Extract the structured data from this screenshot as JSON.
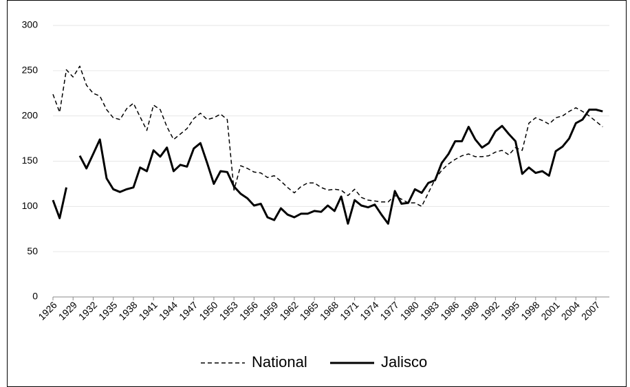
{
  "chart_data": {
    "type": "line",
    "x": [
      1926,
      1927,
      1928,
      1929,
      1930,
      1931,
      1932,
      1933,
      1934,
      1935,
      1936,
      1937,
      1938,
      1939,
      1940,
      1941,
      1942,
      1943,
      1944,
      1945,
      1946,
      1947,
      1948,
      1949,
      1950,
      1951,
      1952,
      1953,
      1954,
      1955,
      1956,
      1957,
      1958,
      1959,
      1960,
      1961,
      1962,
      1963,
      1964,
      1965,
      1966,
      1967,
      1968,
      1969,
      1970,
      1971,
      1972,
      1973,
      1974,
      1975,
      1976,
      1977,
      1978,
      1979,
      1980,
      1981,
      1982,
      1983,
      1984,
      1985,
      1986,
      1987,
      1988,
      1989,
      1990,
      1991,
      1992,
      1993,
      1994,
      1995,
      1996,
      1997,
      1998,
      1999,
      2000,
      2001,
      2002,
      2003,
      2004,
      2005,
      2006,
      2007,
      2008
    ],
    "series": [
      {
        "name": "National",
        "color": "#000000",
        "line_style": "dashed",
        "values": [
          224,
          204,
          251,
          243,
          255,
          234,
          225,
          222,
          207,
          198,
          196,
          208,
          214,
          199,
          184,
          212,
          207,
          188,
          174,
          180,
          186,
          197,
          203,
          196,
          198,
          202,
          196,
          118,
          145,
          142,
          138,
          137,
          132,
          134,
          128,
          121,
          115,
          122,
          126,
          126,
          121,
          118,
          119,
          118,
          112,
          119,
          110,
          107,
          106,
          105,
          105,
          112,
          108,
          104,
          104,
          100,
          115,
          130,
          140,
          147,
          152,
          156,
          158,
          155,
          155,
          156,
          160,
          162,
          157,
          165,
          162,
          192,
          198,
          195,
          191,
          198,
          200,
          205,
          209,
          205,
          200,
          194,
          188
        ]
      },
      {
        "name": "Jalisco",
        "color": "#000000",
        "line_style": "solid",
        "values": [
          107,
          87,
          121,
          null,
          156,
          142,
          158,
          174,
          131,
          119,
          116,
          119,
          121,
          143,
          139,
          162,
          155,
          165,
          139,
          146,
          144,
          164,
          170,
          148,
          125,
          139,
          138,
          122,
          114,
          109,
          101,
          103,
          88,
          85,
          98,
          91,
          88,
          92,
          92,
          95,
          94,
          101,
          95,
          111,
          81,
          107,
          101,
          99,
          102,
          91,
          81,
          117,
          103,
          104,
          119,
          115,
          126,
          129,
          148,
          158,
          172,
          172,
          188,
          174,
          165,
          170,
          183,
          189,
          180,
          172,
          136,
          143,
          137,
          139,
          134,
          161,
          166,
          175,
          192,
          196,
          207,
          207,
          205
        ]
      }
    ],
    "xlim": [
      1926,
      2009
    ],
    "xticks": [
      1926,
      1929,
      1932,
      1935,
      1938,
      1941,
      1944,
      1947,
      1950,
      1953,
      1956,
      1959,
      1962,
      1965,
      1968,
      1971,
      1974,
      1977,
      1980,
      1983,
      1986,
      1989,
      1992,
      1995,
      1998,
      2001,
      2004,
      2007
    ],
    "ylim": [
      0,
      300
    ],
    "yticks": [
      0,
      50,
      100,
      150,
      200,
      250,
      300
    ],
    "grid": true,
    "legend": "bottom"
  }
}
